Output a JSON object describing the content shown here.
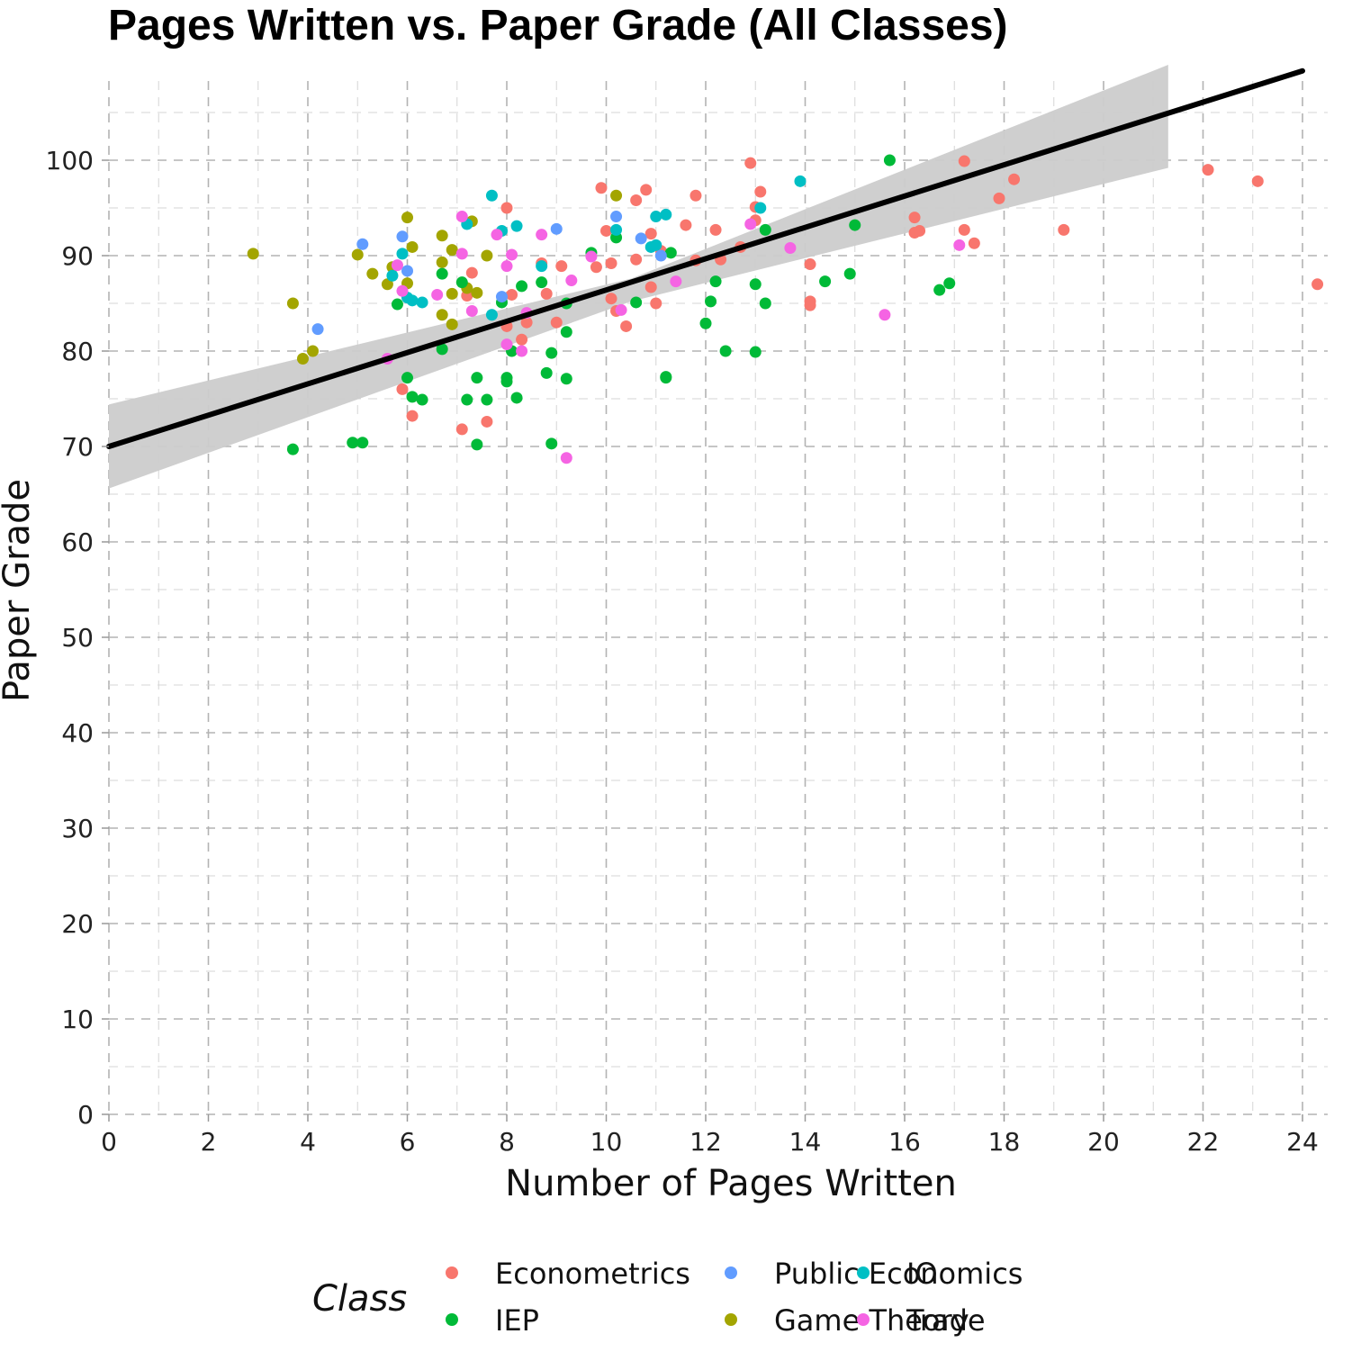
{
  "chart_data": {
    "type": "scatter",
    "title": "Pages Written vs. Paper Grade (All Classes)",
    "xlabel": "Number of Pages Written",
    "ylabel": "Paper Grade",
    "xlim": [
      0,
      24.5
    ],
    "ylim": [
      0,
      110
    ],
    "x_ticks": [
      0,
      2,
      4,
      6,
      8,
      10,
      12,
      14,
      16,
      18,
      20,
      22,
      24
    ],
    "y_ticks": [
      0,
      10,
      20,
      30,
      40,
      50,
      60,
      70,
      80,
      90,
      100
    ],
    "grid": true,
    "legend": {
      "title": "Class",
      "position": "bottom",
      "entries": [
        "Econometrics",
        "IEP",
        "Public Economics",
        "Game Theory",
        "IO",
        "Trade"
      ]
    },
    "trend_line": {
      "method": "linear fit",
      "x_range": [
        0,
        24
      ],
      "y_at_x0": 70,
      "slope": 1.64,
      "ci_x_range": [
        0,
        21.3
      ],
      "ci_lower": [
        [
          0,
          65.6
        ],
        [
          10.5,
          85.2
        ],
        [
          21.3,
          99.2
        ]
      ],
      "ci_upper": [
        [
          0,
          74.4
        ],
        [
          10.5,
          87.6
        ],
        [
          21.3,
          110.0
        ]
      ]
    },
    "series": [
      {
        "name": "Econometrics",
        "color": "#F8766D",
        "points": [
          [
            5.9,
            76
          ],
          [
            6.1,
            73.2
          ],
          [
            7.1,
            71.8
          ],
          [
            7.6,
            72.6
          ],
          [
            7.2,
            85.8
          ],
          [
            7.3,
            88.2
          ],
          [
            8.0,
            95
          ],
          [
            8.0,
            82.6
          ],
          [
            8.1,
            85.9
          ],
          [
            8.3,
            81.2
          ],
          [
            8.4,
            83
          ],
          [
            8.7,
            89.2
          ],
          [
            8.8,
            86
          ],
          [
            9.0,
            83
          ],
          [
            9.1,
            88.9
          ],
          [
            9.8,
            88.8
          ],
          [
            9.9,
            97.1
          ],
          [
            10.0,
            92.6
          ],
          [
            10.1,
            89.2
          ],
          [
            10.1,
            85.5
          ],
          [
            10.2,
            84.2
          ],
          [
            10.4,
            82.6
          ],
          [
            10.6,
            95.8
          ],
          [
            10.6,
            89.6
          ],
          [
            10.8,
            96.9
          ],
          [
            10.9,
            92.3
          ],
          [
            10.9,
            86.7
          ],
          [
            11.0,
            85
          ],
          [
            11.1,
            90.5
          ],
          [
            11.6,
            93.2
          ],
          [
            11.8,
            96.3
          ],
          [
            11.8,
            89.5
          ],
          [
            12.2,
            92.7
          ],
          [
            12.3,
            89.6
          ],
          [
            12.7,
            90.9
          ],
          [
            12.9,
            99.7
          ],
          [
            13.0,
            95.1
          ],
          [
            13.0,
            93.7
          ],
          [
            13.1,
            96.7
          ],
          [
            14.1,
            89.1
          ],
          [
            14.1,
            85.2
          ],
          [
            14.1,
            84.8
          ],
          [
            16.2,
            94
          ],
          [
            16.2,
            92.4
          ],
          [
            16.3,
            92.6
          ],
          [
            17.2,
            99.9
          ],
          [
            17.2,
            92.7
          ],
          [
            17.4,
            91.3
          ],
          [
            17.9,
            96
          ],
          [
            18.2,
            98
          ],
          [
            19.2,
            92.7
          ],
          [
            22.1,
            99
          ],
          [
            23.1,
            97.8
          ],
          [
            24.3,
            87
          ]
        ]
      },
      {
        "name": "Game Theory",
        "color": "#A3A500",
        "points": [
          [
            2.9,
            90.2
          ],
          [
            3.7,
            85
          ],
          [
            3.9,
            79.2
          ],
          [
            4.1,
            80
          ],
          [
            5.0,
            90.1
          ],
          [
            5.3,
            88.1
          ],
          [
            5.6,
            87
          ],
          [
            5.7,
            88.8
          ],
          [
            6.0,
            94
          ],
          [
            6.0,
            87.1
          ],
          [
            6.1,
            90.9
          ],
          [
            6.7,
            92.1
          ],
          [
            6.7,
            89.3
          ],
          [
            6.7,
            83.8
          ],
          [
            6.9,
            90.6
          ],
          [
            6.9,
            86
          ],
          [
            6.9,
            82.8
          ],
          [
            7.2,
            86.6
          ],
          [
            7.3,
            93.6
          ],
          [
            7.4,
            86.1
          ],
          [
            7.6,
            90
          ],
          [
            10.2,
            96.3
          ]
        ]
      },
      {
        "name": "IEP",
        "color": "#00BA38",
        "points": [
          [
            3.7,
            69.7
          ],
          [
            4.9,
            70.4
          ],
          [
            5.1,
            70.4
          ],
          [
            5.8,
            84.9
          ],
          [
            6.0,
            77.2
          ],
          [
            6.1,
            75.2
          ],
          [
            6.3,
            74.9
          ],
          [
            6.7,
            88.1
          ],
          [
            6.7,
            80.2
          ],
          [
            7.1,
            87.2
          ],
          [
            7.2,
            74.9
          ],
          [
            7.4,
            77.2
          ],
          [
            7.4,
            70.2
          ],
          [
            7.6,
            74.9
          ],
          [
            7.9,
            85.1
          ],
          [
            8.0,
            77.2
          ],
          [
            8.0,
            76.8
          ],
          [
            8.1,
            80
          ],
          [
            8.2,
            75.1
          ],
          [
            8.3,
            86.8
          ],
          [
            8.7,
            87.2
          ],
          [
            8.8,
            77.7
          ],
          [
            8.9,
            79.8
          ],
          [
            8.9,
            70.3
          ],
          [
            9.2,
            85
          ],
          [
            9.2,
            82
          ],
          [
            9.2,
            77.1
          ],
          [
            9.7,
            90.3
          ],
          [
            10.2,
            91.9
          ],
          [
            10.6,
            85.1
          ],
          [
            11.2,
            77.2
          ],
          [
            11.2,
            77.3
          ],
          [
            11.3,
            90.3
          ],
          [
            12.0,
            82.9
          ],
          [
            12.1,
            85.2
          ],
          [
            12.2,
            87.3
          ],
          [
            12.4,
            80
          ],
          [
            13.0,
            87
          ],
          [
            13.0,
            79.9
          ],
          [
            13.2,
            85
          ],
          [
            13.2,
            92.7
          ],
          [
            14.4,
            87.3
          ],
          [
            14.9,
            88.1
          ],
          [
            15.0,
            93.2
          ],
          [
            15.7,
            100
          ],
          [
            16.7,
            86.4
          ],
          [
            16.9,
            87.1
          ]
        ]
      },
      {
        "name": "IO",
        "color": "#00BFC4",
        "points": [
          [
            5.7,
            87.9
          ],
          [
            5.9,
            90.2
          ],
          [
            6.0,
            85.6
          ],
          [
            6.1,
            85.3
          ],
          [
            6.3,
            85.1
          ],
          [
            7.2,
            93.3
          ],
          [
            7.7,
            96.3
          ],
          [
            7.7,
            83.8
          ],
          [
            7.9,
            92.6
          ],
          [
            8.2,
            93.1
          ],
          [
            8.7,
            88.9
          ],
          [
            10.2,
            92.7
          ],
          [
            10.9,
            90.9
          ],
          [
            11.0,
            94.1
          ],
          [
            11.0,
            91.1
          ],
          [
            11.2,
            94.3
          ],
          [
            13.1,
            95
          ],
          [
            13.9,
            97.8
          ]
        ]
      },
      {
        "name": "Public Economics",
        "color": "#619CFF",
        "points": [
          [
            4.2,
            82.3
          ],
          [
            5.1,
            91.2
          ],
          [
            5.9,
            92
          ],
          [
            6.0,
            88.4
          ],
          [
            7.9,
            85.7
          ],
          [
            9.0,
            92.8
          ],
          [
            10.2,
            94.1
          ],
          [
            10.7,
            91.8
          ],
          [
            11.1,
            90
          ]
        ]
      },
      {
        "name": "Trade",
        "color": "#F564E3",
        "points": [
          [
            5.6,
            79.2
          ],
          [
            5.8,
            89
          ],
          [
            5.9,
            86.3
          ],
          [
            6.6,
            85.9
          ],
          [
            7.1,
            94.1
          ],
          [
            7.1,
            90.2
          ],
          [
            7.3,
            84.2
          ],
          [
            7.8,
            92.2
          ],
          [
            8.0,
            88.9
          ],
          [
            8.0,
            80.7
          ],
          [
            8.1,
            90.1
          ],
          [
            8.3,
            80
          ],
          [
            8.4,
            84
          ],
          [
            8.7,
            92.2
          ],
          [
            9.2,
            68.8
          ],
          [
            9.3,
            87.4
          ],
          [
            9.7,
            89.9
          ],
          [
            10.3,
            84.3
          ],
          [
            11.4,
            87.3
          ],
          [
            12.9,
            93.3
          ],
          [
            13.7,
            90.8
          ],
          [
            15.6,
            83.8
          ],
          [
            17.1,
            91.1
          ]
        ]
      }
    ]
  }
}
